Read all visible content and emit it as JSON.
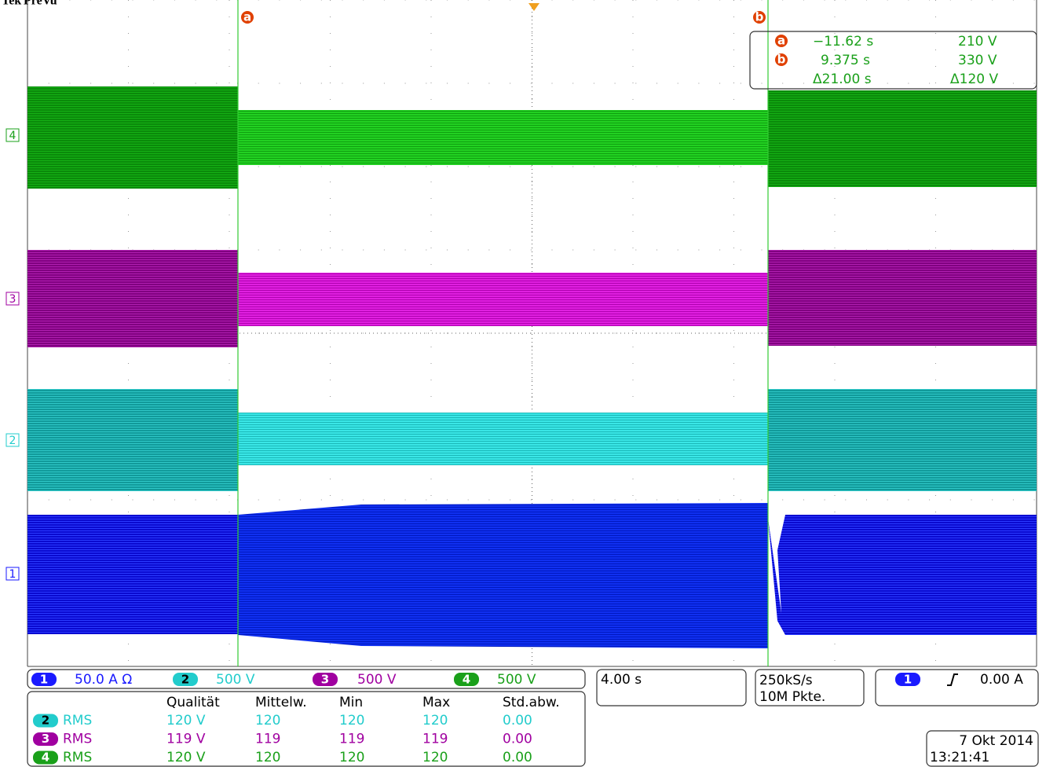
{
  "header": {
    "brand": "Tek",
    "mode": "PreVu"
  },
  "cursors": {
    "a": {
      "label": "a",
      "time": "−11.62 s",
      "level": "210 V"
    },
    "b": {
      "label": "b",
      "time": "9.375 s",
      "level": "330 V"
    },
    "delta": {
      "time": "Δ21.00 s",
      "level": "Δ120 V"
    }
  },
  "channel_markers": [
    "4",
    "3",
    "2",
    "1"
  ],
  "channels": [
    {
      "number": "1",
      "scale": "50.0 A Ω"
    },
    {
      "number": "2",
      "scale": "500 V"
    },
    {
      "number": "3",
      "scale": "500 V"
    },
    {
      "number": "4",
      "scale": "500 V"
    }
  ],
  "timebase": "4.00 s",
  "acquisition": {
    "sample_rate": "250kS/s",
    "record_length": "10M Pkte."
  },
  "trigger": {
    "source": "1",
    "level": "0.00 A"
  },
  "measurements": {
    "columns": [
      "Qualität",
      "Mittelw.",
      "Min",
      "Max",
      "Std.abw."
    ],
    "rows": [
      {
        "channel": "2",
        "type": "RMS",
        "values": [
          "120 V",
          "120",
          "120",
          "120",
          "0.00"
        ]
      },
      {
        "channel": "3",
        "type": "RMS",
        "values": [
          "119 V",
          "119",
          "119",
          "119",
          "0.00"
        ]
      },
      {
        "channel": "4",
        "type": "RMS",
        "values": [
          "120 V",
          "120",
          "120",
          "120",
          "0.00"
        ]
      }
    ]
  },
  "date": "7 Okt 2014",
  "time": "13:21:41"
}
